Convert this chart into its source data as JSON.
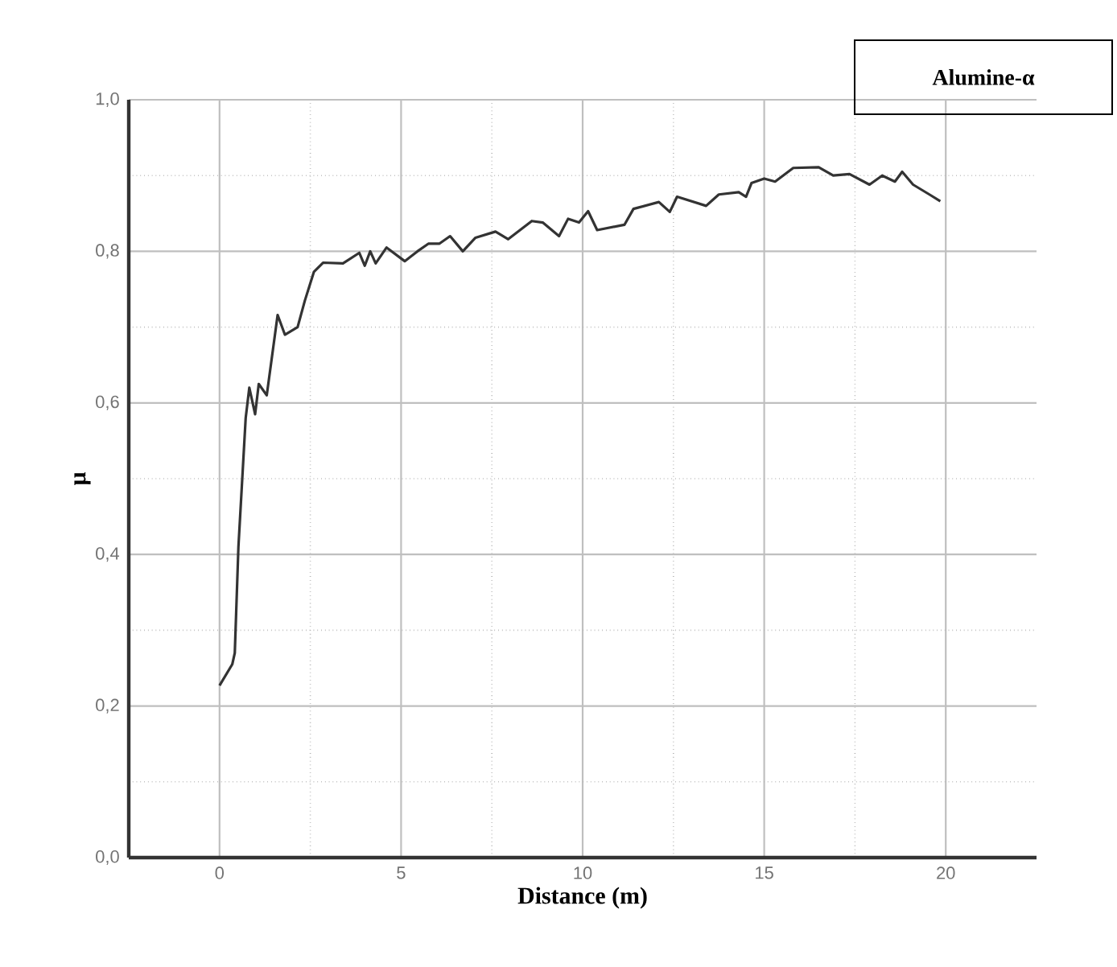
{
  "chart_data": {
    "type": "line",
    "title": "Alumine-α",
    "xlabel": "Distance (m)",
    "ylabel": "μ",
    "xlim": [
      -2.5,
      22.5
    ],
    "ylim": [
      0,
      1
    ],
    "xticks": [
      0,
      5,
      10,
      15,
      20
    ],
    "yticks": [
      {
        "value": 0,
        "label": "0,0"
      },
      {
        "value": 0.2,
        "label": "0,2"
      },
      {
        "value": 0.4,
        "label": "0,4"
      },
      {
        "value": 0.6,
        "label": "0,6"
      },
      {
        "value": 0.8,
        "label": "0,8"
      },
      {
        "value": 1,
        "label": "1,0"
      }
    ],
    "grid": true,
    "marker": "none",
    "line_style": "solid",
    "series": [
      {
        "color": "#333333",
        "x": [
          0,
          0.35,
          0.42,
          0.52,
          0.72,
          0.82,
          0.98,
          1.08,
          1.3,
          1.6,
          1.8,
          2.15,
          2.35,
          2.6,
          2.85,
          3.4,
          3.85,
          4.0,
          4.15,
          4.3,
          4.6,
          5.1,
          5.45,
          5.75,
          6.05,
          6.35,
          6.7,
          7.05,
          7.6,
          7.95,
          8.6,
          8.9,
          9.35,
          9.6,
          9.9,
          10.15,
          10.4,
          11.15,
          11.4,
          12.1,
          12.4,
          12.6,
          13.4,
          13.75,
          14.3,
          14.5,
          14.65,
          15.0,
          15.3,
          15.8,
          16.5,
          16.9,
          17.35,
          17.9,
          18.25,
          18.6,
          18.8,
          19.1,
          19.55,
          19.85
        ],
        "values": [
          0.227,
          0.255,
          0.27,
          0.41,
          0.58,
          0.62,
          0.585,
          0.625,
          0.61,
          0.716,
          0.69,
          0.7,
          0.735,
          0.773,
          0.785,
          0.784,
          0.798,
          0.781,
          0.8,
          0.784,
          0.805,
          0.787,
          0.8,
          0.81,
          0.81,
          0.82,
          0.8,
          0.818,
          0.826,
          0.816,
          0.84,
          0.838,
          0.82,
          0.843,
          0.838,
          0.853,
          0.828,
          0.835,
          0.856,
          0.865,
          0.852,
          0.872,
          0.86,
          0.875,
          0.878,
          0.872,
          0.89,
          0.896,
          0.892,
          0.91,
          0.911,
          0.9,
          0.902,
          0.888,
          0.9,
          0.892,
          0.905,
          0.888,
          0.875,
          0.866
        ]
      }
    ]
  }
}
